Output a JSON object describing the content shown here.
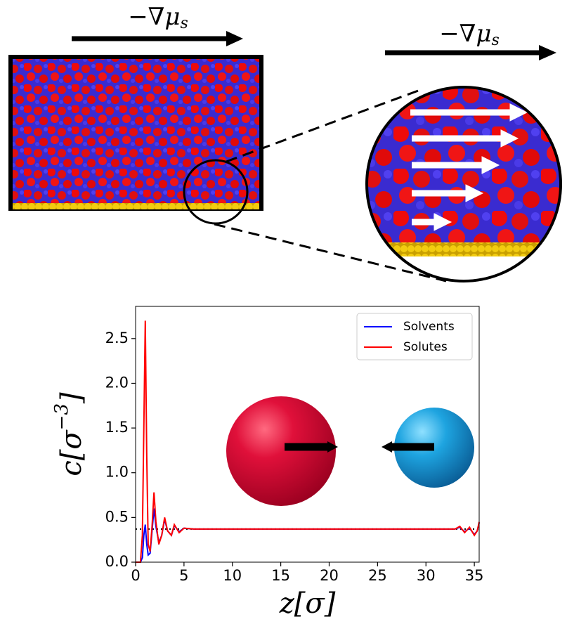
{
  "illustration": {
    "gradient_label_left": "−∇μ",
    "gradient_label_right": "−∇μ",
    "gradient_subscript": "s"
  },
  "chart_data": {
    "type": "line",
    "y_label": "c[σ",
    "y_label_exponent": "−3",
    "y_label_close": "]",
    "x_label": "z[σ]",
    "x": [
      0,
      0.5,
      0.7,
      0.85,
      1.0,
      1.15,
      1.3,
      1.5,
      1.7,
      1.9,
      2.1,
      2.4,
      2.7,
      3.0,
      3.3,
      3.7,
      4.0,
      4.5,
      5,
      6,
      8,
      10,
      15,
      20,
      25,
      30,
      33,
      33.5,
      34,
      34.5,
      35,
      35.3,
      35.5
    ],
    "series": [
      {
        "name": "Solvents",
        "color": "#0000ff",
        "values": [
          0,
          0,
          0.05,
          0.3,
          0.42,
          0.2,
          0.08,
          0.1,
          0.35,
          0.6,
          0.4,
          0.22,
          0.3,
          0.48,
          0.35,
          0.3,
          0.41,
          0.34,
          0.38,
          0.37,
          0.37,
          0.37,
          0.37,
          0.37,
          0.37,
          0.37,
          0.37,
          0.39,
          0.34,
          0.38,
          0.31,
          0.35,
          0.44
        ]
      },
      {
        "name": "Solutes",
        "color": "#ff0000",
        "values": [
          0,
          0,
          0.3,
          1.5,
          2.7,
          1.2,
          0.2,
          0.12,
          0.4,
          0.78,
          0.45,
          0.2,
          0.3,
          0.5,
          0.35,
          0.3,
          0.42,
          0.33,
          0.38,
          0.37,
          0.37,
          0.37,
          0.37,
          0.37,
          0.37,
          0.37,
          0.37,
          0.4,
          0.33,
          0.39,
          0.3,
          0.35,
          0.45
        ]
      }
    ],
    "reference_line": 0.37,
    "xlim": [
      0,
      35.5
    ],
    "ylim": [
      0,
      2.86
    ],
    "xticks": [
      0,
      5,
      10,
      15,
      20,
      25,
      30,
      35
    ],
    "yticks": [
      {
        "value": 0,
        "label": "0.0"
      },
      {
        "value": 0.5,
        "label": "0.5"
      },
      {
        "value": 1,
        "label": "1.0"
      },
      {
        "value": 1.5,
        "label": "1.5"
      },
      {
        "value": 2,
        "label": "2.0"
      },
      {
        "value": 2.5,
        "label": "2.5"
      }
    ],
    "legend": "upper right"
  }
}
